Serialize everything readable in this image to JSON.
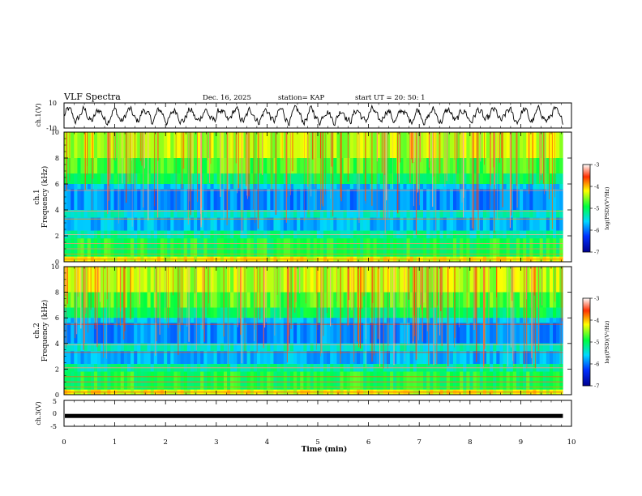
{
  "header": {
    "title": "VLF Spectra",
    "date": "Dec. 16, 2025",
    "station": "station= KAP",
    "start": "start  UT  =   20: 50: 1"
  },
  "colors": {
    "spectro_bg": "#3dd68a",
    "trace": "#000000",
    "axes": "#000000"
  },
  "chart_data": [
    {
      "id": "ch1_waveform",
      "type": "line",
      "ylabel": "ch.1(V)",
      "ylim": [
        -10,
        10
      ],
      "yticks": [
        -10,
        10
      ],
      "xlim": [
        0,
        9.83
      ],
      "note": "noisy waveform oscillating roughly between -5 and 5 V"
    },
    {
      "id": "ch1_spectrogram",
      "type": "heatmap",
      "ylabel_line1": "ch.1",
      "ylabel_line2": "Frequency  (kHz)",
      "ylim": [
        0,
        10
      ],
      "yticks": [
        0,
        2,
        4,
        6,
        8,
        10
      ],
      "xlim": [
        0,
        9.83
      ],
      "colorbar": {
        "label": "log(PSD)(V²/Hz)",
        "range": [
          -7,
          -3
        ],
        "ticks": [
          "-3",
          "-4",
          "-5",
          "-6",
          "-7"
        ]
      }
    },
    {
      "id": "ch2_spectrogram",
      "type": "heatmap",
      "ylabel_line1": "ch.2",
      "ylabel_line2": "Frequency  (kHz)",
      "ylim": [
        0,
        10
      ],
      "yticks": [
        0,
        2,
        4,
        6,
        8,
        10
      ],
      "xlim": [
        0,
        9.83
      ],
      "colorbar": {
        "label": "log(PSD)(V²/Hz)",
        "range": [
          -7,
          -3
        ],
        "ticks": [
          "-3",
          "-4",
          "-5",
          "-6",
          "-7"
        ]
      }
    },
    {
      "id": "ch3_waveform",
      "type": "line",
      "ylabel": "ch.3(V)",
      "ylim": [
        -5,
        5
      ],
      "yticks": [
        -5,
        0,
        5
      ],
      "xlim": [
        0,
        9.83
      ],
      "constant_value": -1,
      "note": "flat thick line near -1 V"
    }
  ],
  "xaxis": {
    "label": "Time  (min)",
    "range": [
      0,
      10
    ],
    "ticks": [
      "0",
      "1",
      "2",
      "3",
      "4",
      "5",
      "6",
      "7",
      "8",
      "9",
      "10"
    ]
  }
}
